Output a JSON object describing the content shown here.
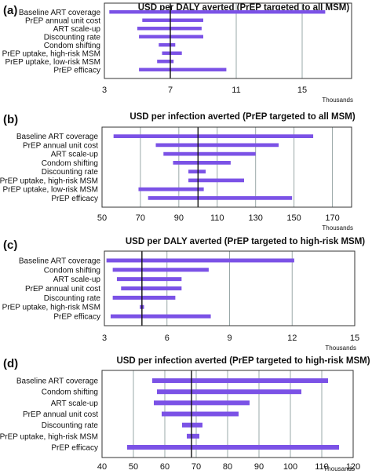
{
  "colors": {
    "bar": "#7b52e6",
    "grid": "#9aa8a8",
    "frame": "#333333",
    "baseline": "#111111"
  },
  "chart_data": [
    {
      "type": "bar",
      "panel": "(a)",
      "title": "USD per DALY averted (PrEP targeted to all MSM)",
      "xlabel": "Thousands",
      "xlim": [
        3,
        18
      ],
      "xticks": [
        3,
        7,
        11,
        15
      ],
      "baseline": 7,
      "grid": true,
      "categories": [
        "Baseline ART coverage",
        "PrEP annual unit cost",
        "ART scale-up",
        "Discounting rate",
        "Condom shifting",
        "PrEP uptake, high-risk MSM",
        "PrEP uptake, low-risk MSM",
        "PrEP efficacy"
      ],
      "ranges": [
        [
          3.3,
          16.4
        ],
        [
          5.3,
          9.0
        ],
        [
          5.0,
          8.9
        ],
        [
          5.1,
          9.0
        ],
        [
          6.3,
          7.3
        ],
        [
          6.5,
          7.7
        ],
        [
          6.2,
          7.2
        ],
        [
          5.1,
          10.4
        ]
      ]
    },
    {
      "type": "bar",
      "panel": "(b)",
      "title": "USD per infection averted (PrEP targeted to all MSM)",
      "xlabel": "Thousands",
      "xlim": [
        50,
        180
      ],
      "xticks": [
        50,
        70,
        90,
        110,
        130,
        150,
        170
      ],
      "baseline": 100,
      "grid": true,
      "categories": [
        "Baseline ART coverage",
        "PrEP annual unit cost",
        "ART scale-up",
        "Condom shifting",
        "Discounting rate",
        "PrEP uptake, high-risk MSM",
        "PrEP uptake, low-risk MSM",
        "PrEP efficacy"
      ],
      "ranges": [
        [
          56,
          160
        ],
        [
          78,
          142
        ],
        [
          82,
          130
        ],
        [
          87,
          117
        ],
        [
          95,
          104
        ],
        [
          95,
          124
        ],
        [
          69,
          103
        ],
        [
          74,
          149
        ]
      ]
    },
    {
      "type": "bar",
      "panel": "(c)",
      "title": "USD per DALY averted (PrEP targeted to high-risk MSM)",
      "xlabel": "Thousands",
      "xlim": [
        3,
        15
      ],
      "xticks": [
        3,
        6,
        9,
        12,
        15
      ],
      "baseline": 4.8,
      "grid": true,
      "categories": [
        "Baseline ART coverage",
        "Condom shifting",
        "ART scale-up",
        "PrEP annual unit cost",
        "Discounting rate",
        "PrEP uptake, high-risk MSM",
        "PrEP efficacy"
      ],
      "ranges": [
        [
          3.1,
          12.1
        ],
        [
          3.4,
          8.0
        ],
        [
          3.6,
          6.7
        ],
        [
          3.8,
          6.7
        ],
        [
          3.4,
          6.4
        ],
        [
          4.7,
          4.9
        ],
        [
          3.3,
          8.1
        ]
      ]
    },
    {
      "type": "bar",
      "panel": "(d)",
      "title": "USD per infection averted (PrEP targeted to high-risk MSM)",
      "xlabel": "Thousands",
      "xlim": [
        40,
        120
      ],
      "xticks": [
        40,
        50,
        60,
        70,
        80,
        90,
        100,
        110,
        120
      ],
      "baseline": 68.5,
      "grid": true,
      "categories": [
        "Baseline ART coverage",
        "Condom shifting",
        "ART scale-up",
        "PrEP annual unit cost",
        "Discounting rate",
        "PrEP uptake, high-risk MSM",
        "PrEP efficacy"
      ],
      "ranges": [
        [
          56,
          112
        ],
        [
          57.5,
          103.5
        ],
        [
          56.5,
          87
        ],
        [
          59,
          83.5
        ],
        [
          65.5,
          72
        ],
        [
          67,
          71
        ],
        [
          48,
          115.5
        ]
      ]
    }
  ]
}
